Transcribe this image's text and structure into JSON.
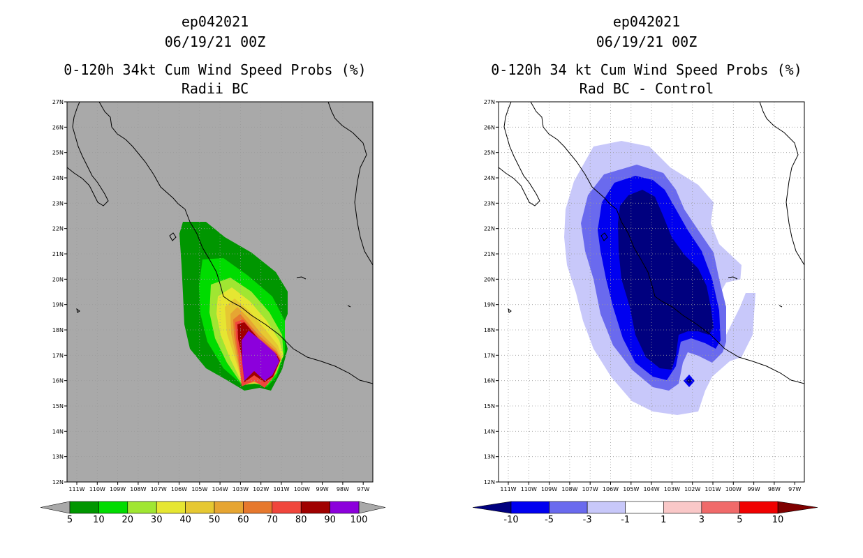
{
  "panels": [
    {
      "id": "left",
      "storm_id": "ep042021",
      "date": "06/19/21 00Z",
      "title_line1": "0-120h 34kt Cum Wind Speed Probs (%)",
      "title_line2": "Radii BC",
      "background": "#a9a9a9",
      "colorbar": {
        "colors": [
          "#009600",
          "#00dc00",
          "#a0e632",
          "#e6e632",
          "#e6c832",
          "#e6a532",
          "#e6782d",
          "#f0463c",
          "#a00000",
          "#8c00dc"
        ],
        "labels": [
          "5",
          "10",
          "20",
          "30",
          "40",
          "50",
          "60",
          "70",
          "80",
          "90",
          "100"
        ],
        "under_color": "#a9a9a9",
        "over_color": "#a9a9a9"
      }
    },
    {
      "id": "right",
      "storm_id": "ep042021",
      "date": "06/19/21 00Z",
      "title_line1": "0-120h 34 kt Cum Wind Speed Probs (%)",
      "title_line2": "Rad BC - Control",
      "background": "#ffffff",
      "colorbar": {
        "colors": [
          "#0000f0",
          "#6a6aee",
          "#c8c8fa",
          "#ffffff",
          "#fac8c8",
          "#f06a6a",
          "#f00000"
        ],
        "labels": [
          "-10",
          "-5",
          "-3",
          "-1",
          "1",
          "3",
          "5",
          "10"
        ],
        "under_color": "#00007f",
        "over_color": "#7f0000"
      }
    }
  ],
  "map": {
    "lat_labels": [
      "27N",
      "26N",
      "25N",
      "24N",
      "23N",
      "22N",
      "21N",
      "20N",
      "19N",
      "18N",
      "17N",
      "16N",
      "15N",
      "14N",
      "13N",
      "12N"
    ],
    "lon_labels": [
      "111W",
      "110W",
      "109W",
      "108W",
      "107W",
      "106W",
      "105W",
      "104W",
      "103W",
      "102W",
      "101W",
      "100W",
      "99W",
      "98W",
      "97W"
    ]
  }
}
